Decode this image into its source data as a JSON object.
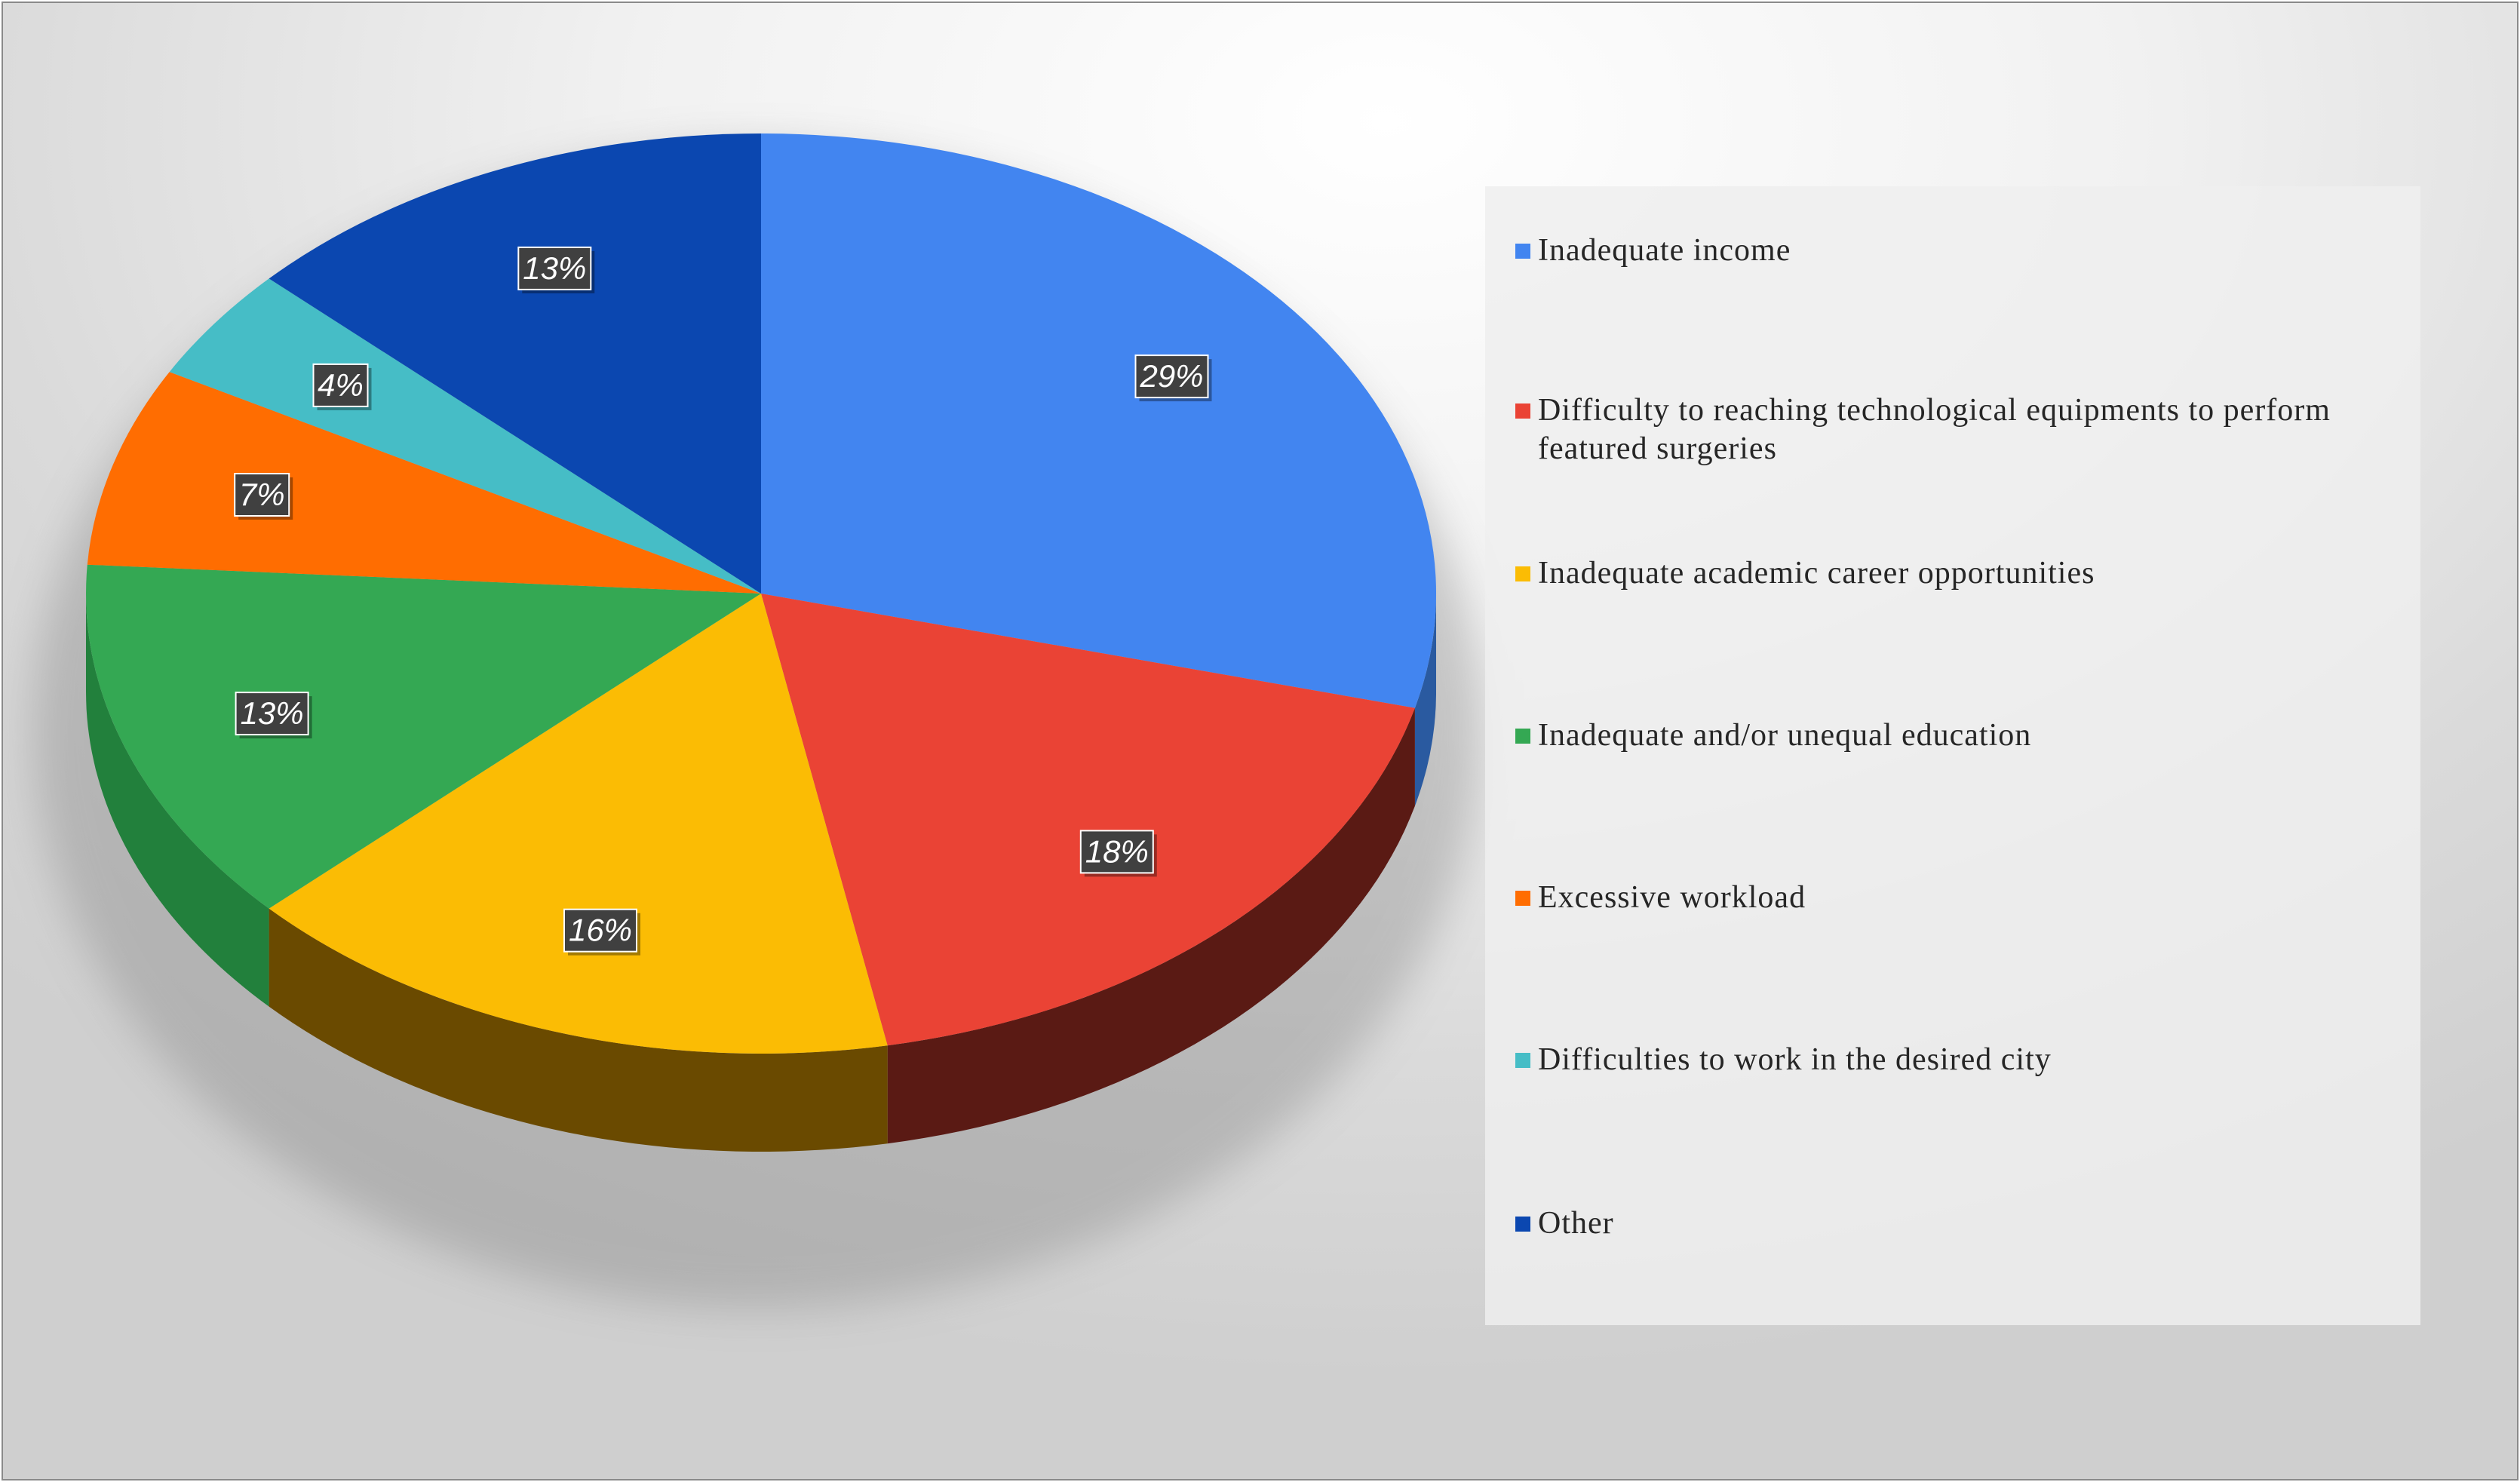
{
  "chart_data": {
    "type": "pie",
    "title": "",
    "categories": [
      "Inadequate income",
      "Difficulty to reaching technological equipments to perform featured surgeries",
      "Inadequate academic career opportunities",
      "Inadequate and/or unequal education",
      "Excessive workload",
      "Difficulties to work in the desired city",
      "Other"
    ],
    "values": [
      29,
      18,
      16,
      13,
      7,
      4,
      13
    ],
    "labels": [
      "29%",
      "18%",
      "16%",
      "13%",
      "7%",
      "4%",
      "13%"
    ],
    "colors": [
      "#4285F0",
      "#EA4335",
      "#FBBC04",
      "#34A853",
      "#FF6D01",
      "#46BDC6",
      "#0B47B0"
    ],
    "side_colors": [
      "#2a5aa0",
      "#5a1a14",
      "#6a4a00",
      "#22803c",
      "#a04000",
      "#2a7a80",
      "#072d70"
    ],
    "legend": {
      "position": "right"
    }
  }
}
